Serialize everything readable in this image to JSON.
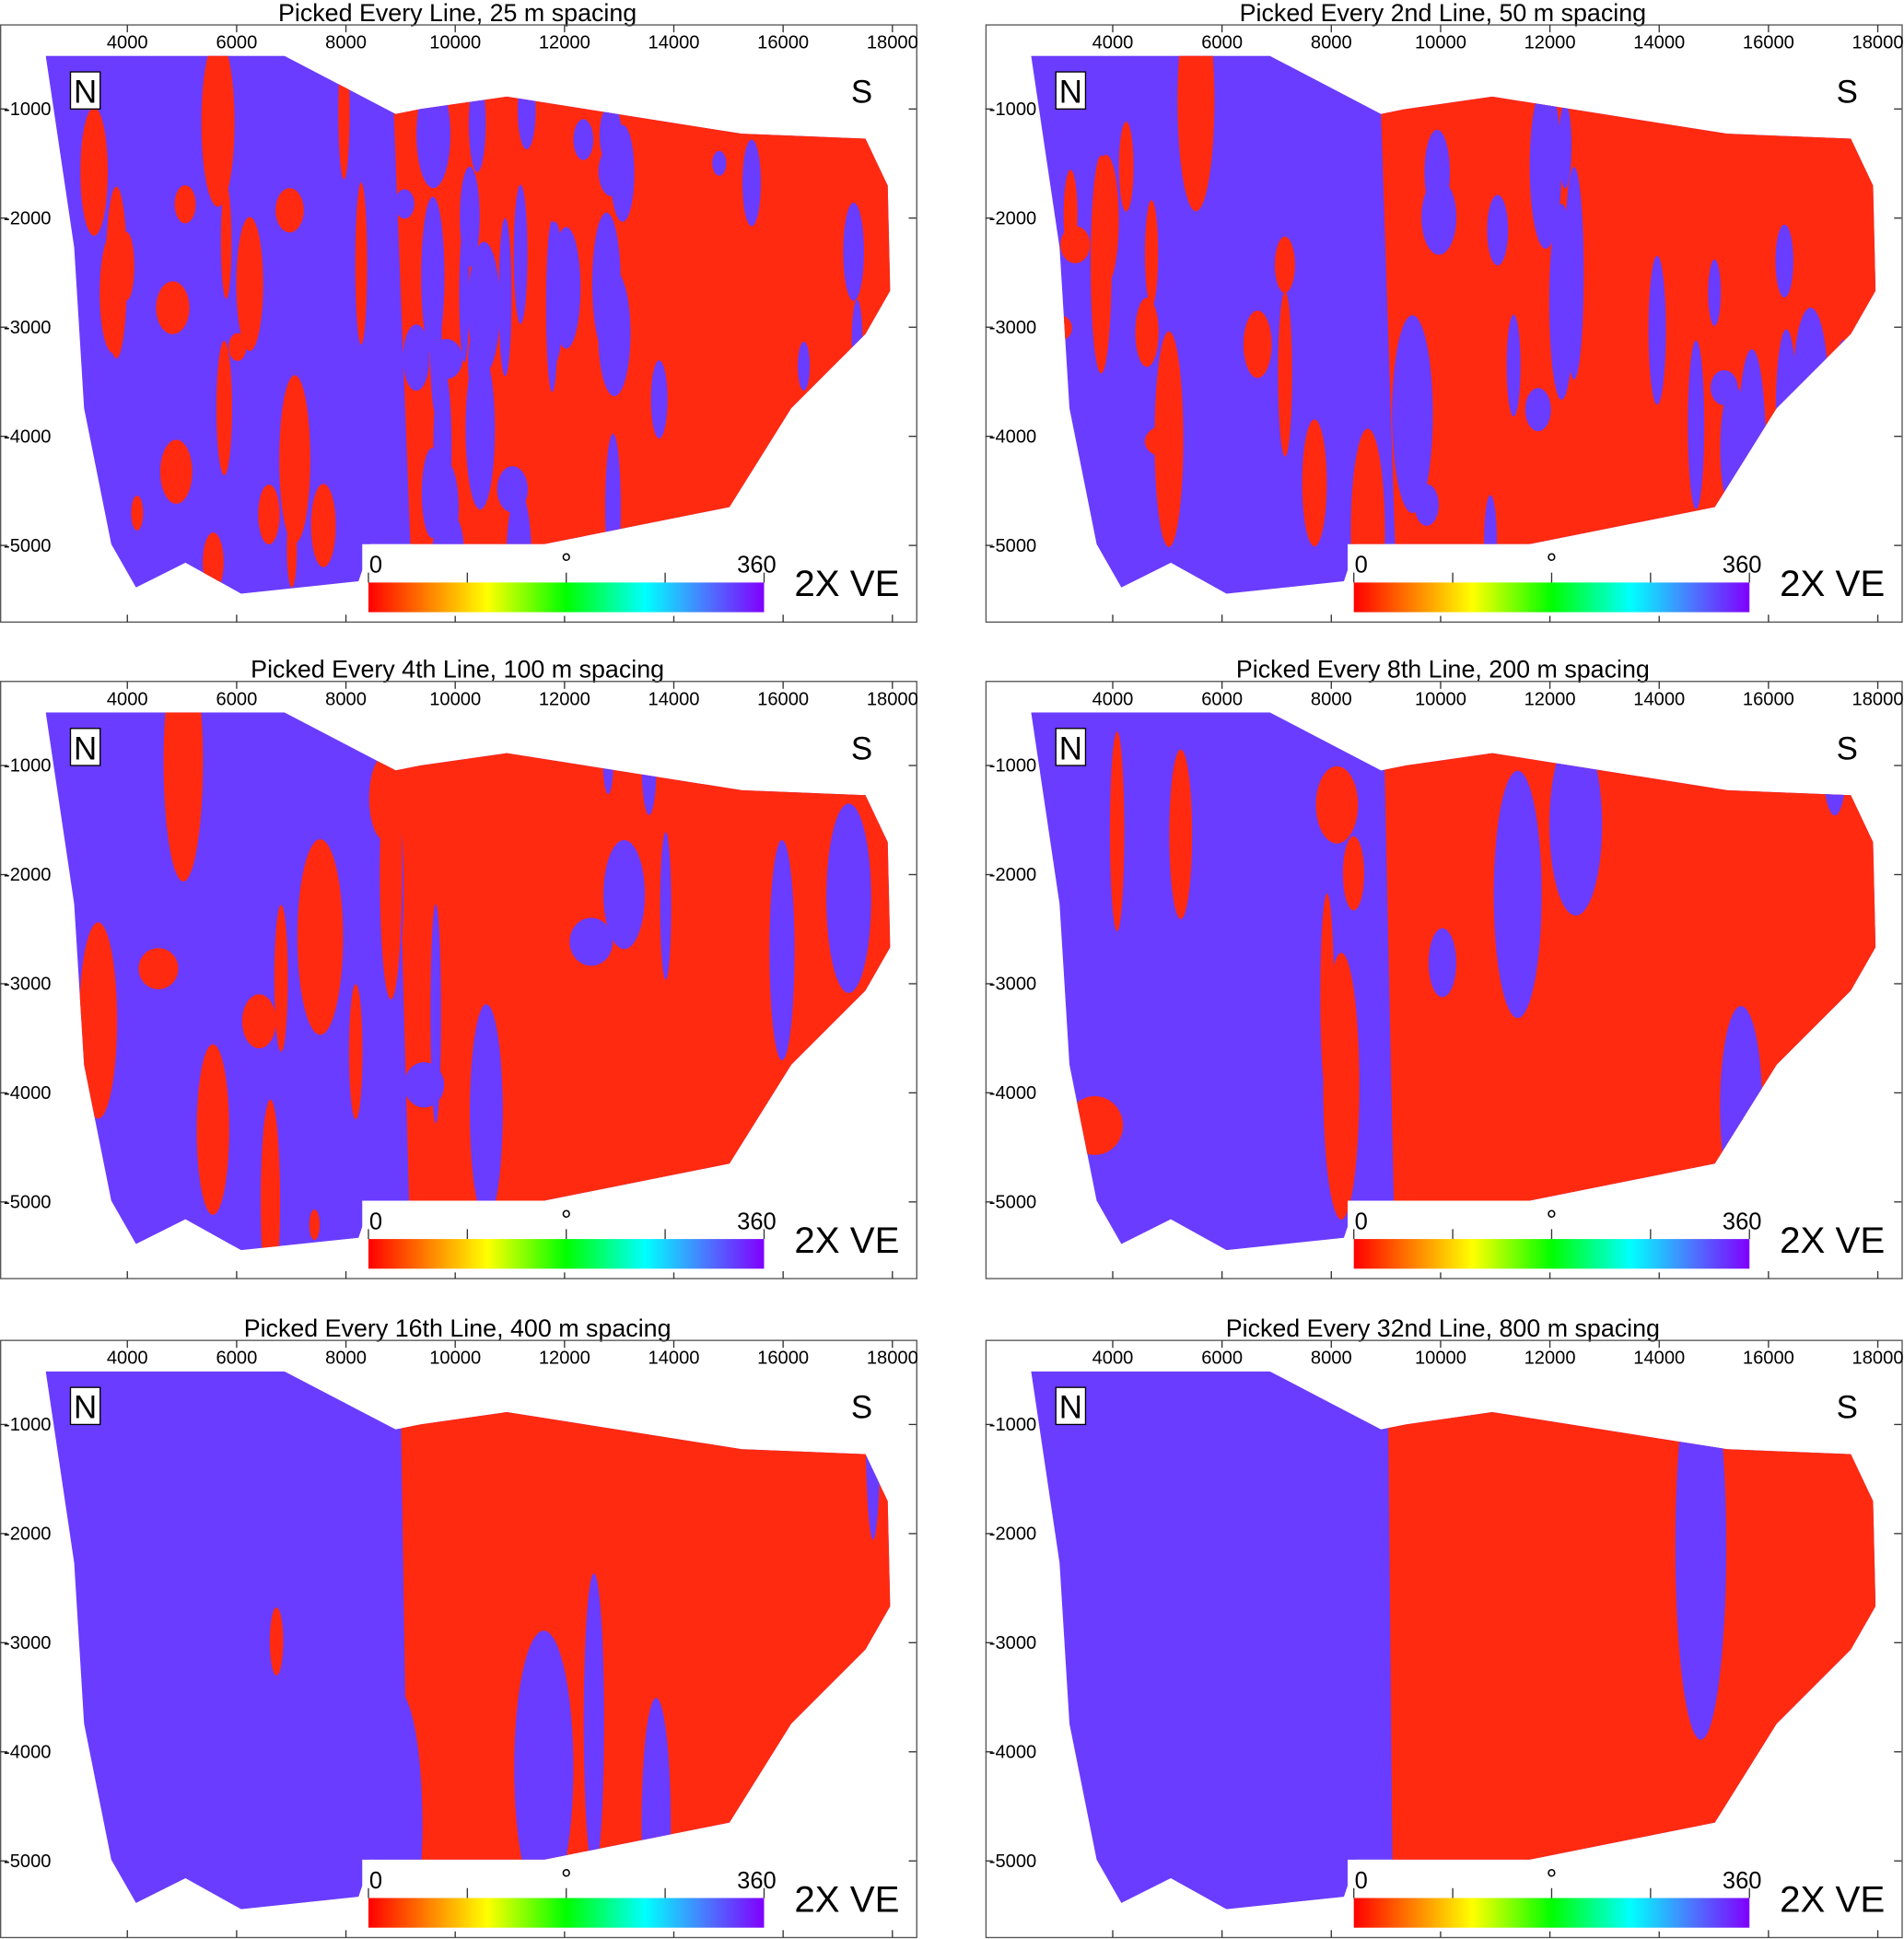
{
  "panels": [
    {
      "title": "Picked Every Line, 25 m spacing",
      "xlim": [
        1670,
        18430
      ],
      "ylim": [
        -5700,
        -230
      ],
      "xticks": [
        4000,
        6000,
        8000,
        10000,
        12000,
        14000,
        16000,
        18000
      ],
      "yticks": [
        -1000,
        -2000,
        -3000,
        -4000,
        -5000
      ],
      "north": "N",
      "south": "S",
      "colorbar": {
        "min": 0,
        "max": 360,
        "unit": "°"
      },
      "exaggeration": "2X VE"
    },
    {
      "title": "Picked Every 2nd Line, 50 m spacing",
      "xlim": [
        1670,
        18430
      ],
      "ylim": [
        -5700,
        -230
      ],
      "xticks": [
        4000,
        6000,
        8000,
        10000,
        12000,
        14000,
        16000,
        18000
      ],
      "yticks": [
        -1000,
        -2000,
        -3000,
        -4000,
        -5000
      ],
      "north": "N",
      "south": "S",
      "colorbar": {
        "min": 0,
        "max": 360,
        "unit": "°"
      },
      "exaggeration": "2X VE"
    },
    {
      "title": "Picked Every 4th Line, 100 m spacing",
      "xlim": [
        1670,
        18430
      ],
      "ylim": [
        -5700,
        -230
      ],
      "xticks": [
        4000,
        6000,
        8000,
        10000,
        12000,
        14000,
        16000,
        18000
      ],
      "yticks": [
        -1000,
        -2000,
        -3000,
        -4000,
        -5000
      ],
      "north": "N",
      "south": "S",
      "colorbar": {
        "min": 0,
        "max": 360,
        "unit": "°"
      },
      "exaggeration": "2X VE"
    },
    {
      "title": "Picked Every 8th Line, 200 m spacing",
      "xlim": [
        1670,
        18430
      ],
      "ylim": [
        -5700,
        -230
      ],
      "xticks": [
        4000,
        6000,
        8000,
        10000,
        12000,
        14000,
        16000,
        18000
      ],
      "yticks": [
        -1000,
        -2000,
        -3000,
        -4000,
        -5000
      ],
      "north": "N",
      "south": "S",
      "colorbar": {
        "min": 0,
        "max": 360,
        "unit": "°"
      },
      "exaggeration": "2X VE"
    },
    {
      "title": "Picked Every 16th Line, 400 m spacing",
      "xlim": [
        1670,
        18430
      ],
      "ylim": [
        -5700,
        -230
      ],
      "xticks": [
        4000,
        6000,
        8000,
        10000,
        12000,
        14000,
        16000,
        18000
      ],
      "yticks": [
        -1000,
        -2000,
        -3000,
        -4000,
        -5000
      ],
      "north": "N",
      "south": "S",
      "colorbar": {
        "min": 0,
        "max": 360,
        "unit": "°"
      },
      "exaggeration": "2X VE"
    },
    {
      "title": "Picked Every 32nd Line, 800 m spacing",
      "xlim": [
        1670,
        18430
      ],
      "ylim": [
        -5700,
        -230
      ],
      "xticks": [
        4000,
        6000,
        8000,
        10000,
        12000,
        14000,
        16000,
        18000
      ],
      "yticks": [
        -1000,
        -2000,
        -3000,
        -4000,
        -5000
      ],
      "north": "N",
      "south": "S",
      "colorbar": {
        "min": 0,
        "max": 360,
        "unit": "°"
      },
      "exaggeration": "2X VE"
    }
  ]
}
